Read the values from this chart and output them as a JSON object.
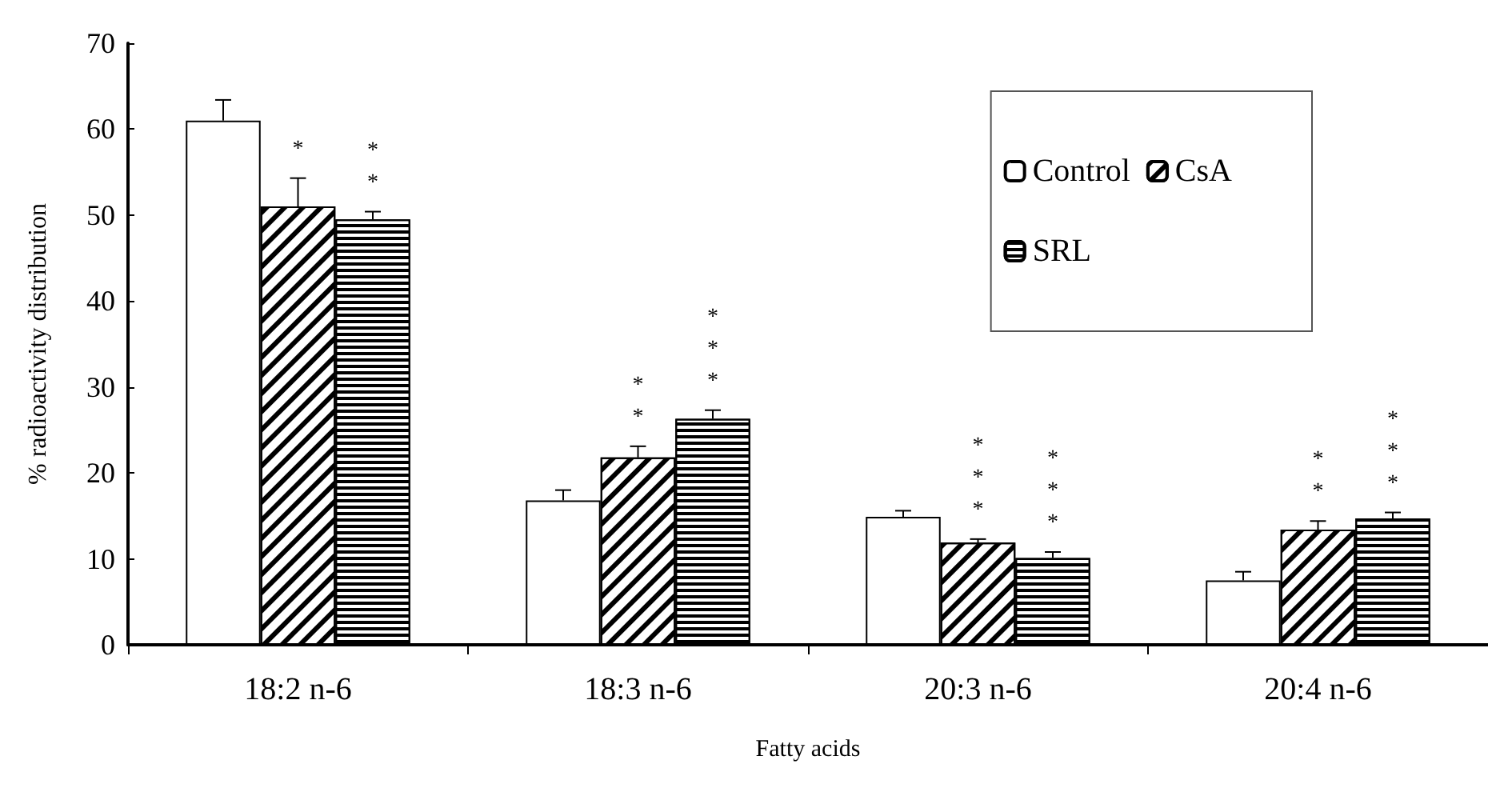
{
  "chart_data": {
    "type": "bar",
    "xlabel": "Fatty acids",
    "ylabel": "% radioactivity distribution",
    "categories": [
      "18:2 n-6",
      "18:3 n-6",
      "20:3 n-6",
      "20:4 n-6"
    ],
    "series": [
      {
        "name": "Control",
        "color": "#ffffff",
        "values": [
          61,
          16.8,
          14.9,
          7.5
        ],
        "errors": [
          2.4,
          1.2,
          0.7,
          1.0
        ]
      },
      {
        "name": "CsA",
        "color": "#000000",
        "values": [
          51,
          21.8,
          11.9,
          13.4
        ],
        "errors": [
          3.3,
          1.3,
          0.4,
          1.0
        ],
        "value_labels": [
          "*",
          "**",
          "***",
          "**"
        ]
      },
      {
        "name": "SRL",
        "color": "#000000",
        "values": [
          49.5,
          26.3,
          10.1,
          14.7
        ],
        "errors": [
          0.9,
          1.0,
          0.7,
          0.7
        ],
        "value_labels": [
          "**",
          "***",
          "***",
          "***"
        ]
      }
    ],
    "ylim": [
      0,
      70
    ],
    "yticks": [
      0,
      10,
      20,
      30,
      40,
      50,
      60,
      70
    ],
    "grid": false,
    "legend": "top right"
  }
}
